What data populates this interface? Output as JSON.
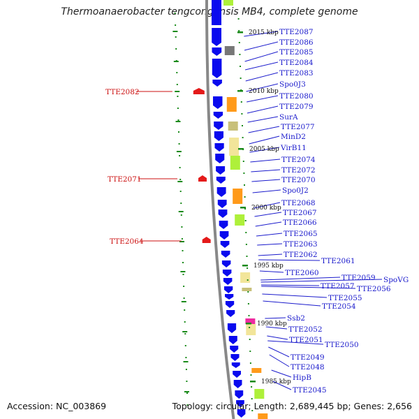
{
  "title": "Thermoanaerobacter tengcongensis MB4, complete genome",
  "footer": {
    "accession": "Accession: NC_003869",
    "summary": "Topology: circular; Length: 2,689,445 bp; Genes: 2,656"
  },
  "colors": {
    "strand_minus": "#0a0aee",
    "strand_plus": "#e41a1a",
    "tick": "#1a8a1a",
    "backbone": "#888888",
    "label_minus": "#1a1acc",
    "label_plus": "#cc1111",
    "orange": "#ff9a1a",
    "khaki": "#c8c07a",
    "yellow": "#f2e59a",
    "lime": "#aef03a",
    "gray": "#777777",
    "magenta": "#ee2aa0"
  },
  "kbp_marks": [
    "2015 kbp",
    "2010 kbp",
    "2005 kbp",
    "2000 kbp",
    "1995 kbp",
    "1990 kbp",
    "1985 kbp"
  ],
  "genes_minus": [
    "TTE2087",
    "TTE2086",
    "TTE2085",
    "TTE2084",
    "TTE2083",
    "Spo0J3",
    "TTE2080",
    "TTE2079",
    "SurA",
    "TTE2077",
    "MinD2",
    "VirB11",
    "TTE2074",
    "TTE2072",
    "TTE2070",
    "Spo0J2",
    "TTE2068",
    "TTE2067",
    "TTE2066",
    "TTE2065",
    "TTE2063",
    "TTE2062",
    "TTE2061",
    "TTE2060",
    "TTE2059",
    "SpoVG",
    "TTE2057",
    "TTE2056",
    "TTE2055",
    "TTE2054",
    "Ssb2",
    "TTE2052",
    "TTE2051",
    "TTE2050",
    "TTE2049",
    "TTE2048",
    "HipB",
    "TTE2045"
  ],
  "genes_plus": [
    "TTE2082",
    "TTE2071",
    "TTE2064"
  ]
}
